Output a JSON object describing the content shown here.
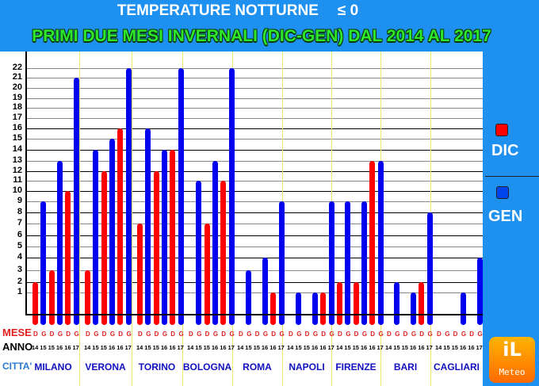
{
  "chart_data": {
    "type": "bar",
    "title": "TEMPERATURE NOTTURNE ≤0",
    "subtitle": "PRIMI DUE MESI INVERNALI (DIC-GEN) DAL 2014 AL 2017",
    "xlabel": "CITTA'",
    "ylabel": "",
    "ylim": [
      0,
      22
    ],
    "yticks": [
      1,
      2,
      3,
      4,
      5,
      6,
      7,
      8,
      9,
      10,
      11,
      12,
      13,
      14,
      15,
      16,
      17,
      18,
      19,
      20,
      21,
      22
    ],
    "grid": true,
    "legend_position": "right",
    "legend": [
      {
        "name": "DIC",
        "color": "#ff0000"
      },
      {
        "name": "GEN",
        "color": "#0000ee"
      }
    ],
    "row_labels": {
      "mese": "MESE",
      "anno": "ANNO",
      "citta": "CITTA'"
    },
    "bar_months": [
      "D",
      "G",
      "D",
      "G",
      "D",
      "G"
    ],
    "bar_years": [
      "14",
      "15",
      "15",
      "16",
      "16",
      "17"
    ],
    "categories": [
      "MILANO",
      "VERONA",
      "TORINO",
      "BOLOGNA",
      "ROMA",
      "NAPOLI",
      "FIRENZE",
      "BARI",
      "CAGLIARI"
    ],
    "series": [
      {
        "name": "DIC 2014",
        "month": "D",
        "values": [
          2,
          3,
          7,
          0,
          0,
          0,
          2,
          0,
          0
        ]
      },
      {
        "name": "GEN 2015",
        "month": "G",
        "values": [
          9,
          14,
          16,
          11,
          3,
          1,
          9,
          2,
          0
        ]
      },
      {
        "name": "DIC 2015",
        "month": "D",
        "values": [
          3,
          12,
          12,
          7,
          0,
          0,
          2,
          0,
          0
        ]
      },
      {
        "name": "GEN 2016",
        "month": "G",
        "values": [
          13,
          15,
          14,
          13,
          4,
          1,
          9,
          1,
          1
        ]
      },
      {
        "name": "DIC 2016",
        "month": "D",
        "values": [
          10,
          16,
          14,
          11,
          1,
          1,
          13,
          2,
          0
        ]
      },
      {
        "name": "GEN 2017",
        "month": "G",
        "values": [
          21,
          22,
          22,
          22,
          9,
          9,
          13,
          8,
          4
        ]
      }
    ]
  },
  "header": {
    "title": "TEMPERATURE NOTTURNE",
    "title_symbol": "≤ 0",
    "subtitle": "PRIMI DUE MESI INVERNALI (DIC-GEN) DAL 2014 AL 2017"
  },
  "legend": {
    "dic_label": "DIC",
    "gen_label": "GEN",
    "dic_color": "#ff0000",
    "gen_color": "#0044ee"
  },
  "logo": {
    "top": "iL",
    "bottom": "Meteo"
  }
}
